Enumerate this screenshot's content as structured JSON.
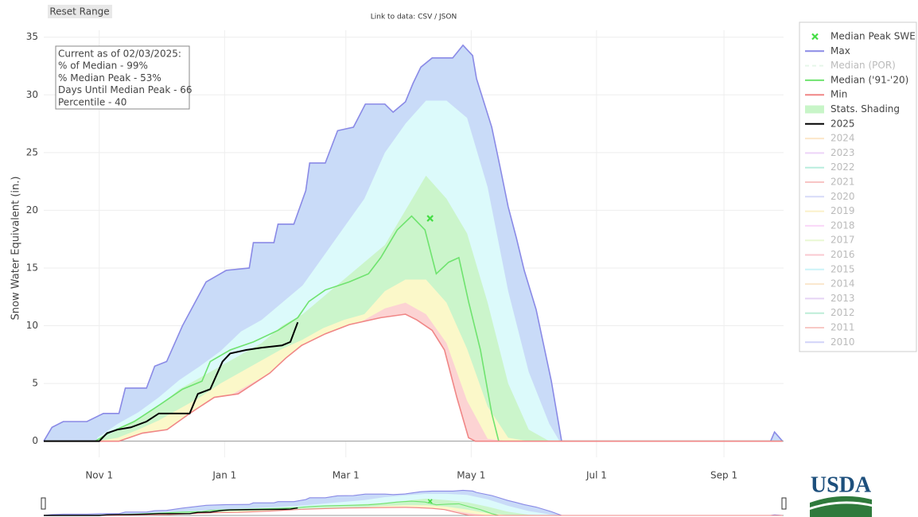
{
  "chart_data": {
    "type": "line",
    "button": "Reset Range",
    "link_text": "Link to data: CSV / JSON",
    "ylabel": "Snow Water Equivalent (in.)",
    "annotation": [
      "Current as of 02/03/2025:",
      "% of Median - 99%",
      "% Median Peak - 53%",
      "Days Until Median Peak - 66",
      "Percentile - 40"
    ],
    "logo": "USDA",
    "xlim": [
      4,
      364
    ],
    "xticks": [
      {
        "value": 31,
        "label": "Nov 1"
      },
      {
        "value": 92,
        "label": "Jan 1"
      },
      {
        "value": 151,
        "label": "Mar 1"
      },
      {
        "value": 212,
        "label": "May 1"
      },
      {
        "value": 273,
        "label": "Jul 1"
      },
      {
        "value": 335,
        "label": "Sep 1"
      }
    ],
    "ylim": [
      -1.4,
      35.6
    ],
    "yticks": [
      0,
      5,
      10,
      15,
      20,
      25,
      30,
      35
    ],
    "grid": true,
    "legend": "right",
    "series": [
      {
        "name": "Median Peak SWE",
        "color": "#44dd44",
        "mode": "marker",
        "x": [
          192
        ],
        "values": [
          19.3
        ]
      },
      {
        "name": "Max",
        "color": "#8a8ae6",
        "fill": "#c9dbf8",
        "x": [
          4,
          8,
          13.5,
          25,
          33,
          40.6,
          43.7,
          54,
          58,
          63.8,
          71.5,
          83,
          92.8,
          104,
          106,
          116,
          118,
          125.7,
          131.5,
          133.4,
          141,
          147,
          154.7,
          160.5,
          170,
          174,
          180,
          183.7,
          187.5,
          193,
          203,
          208,
          212.7,
          214.6,
          222,
          226,
          230,
          234,
          237.8,
          243.6,
          251,
          256,
          357.7,
          359.6,
          363.5
        ],
        "values": [
          0,
          1.2,
          1.7,
          1.7,
          2.4,
          2.4,
          4.6,
          4.6,
          6.5,
          6.9,
          10,
          13.8,
          14.8,
          15,
          17.2,
          17.2,
          18.8,
          18.8,
          21.7,
          24.1,
          24.1,
          26.9,
          27.2,
          29.2,
          29.2,
          28.5,
          29.4,
          31,
          32.4,
          33.2,
          33.2,
          34.3,
          33.4,
          31.4,
          27.2,
          23.8,
          20.3,
          17.6,
          14.8,
          11.4,
          5.2,
          0,
          0,
          0.8,
          0
        ]
      },
      {
        "name": "Median (POR)",
        "color": "#c8eccf",
        "dash": true,
        "hidden": true
      },
      {
        "name": "Median ('91-'20)",
        "color": "#6fe36f",
        "x": [
          4,
          29,
          36.7,
          48,
          60,
          71.5,
          81,
          85,
          94.7,
          106,
          118,
          127.6,
          133,
          141,
          152.7,
          162,
          168,
          176,
          183,
          189.5,
          195,
          201,
          206,
          210.7,
          216.5,
          222,
          225.4,
          363.5
        ],
        "values": [
          0,
          0,
          0.8,
          1.7,
          3.1,
          4.5,
          5.2,
          6.9,
          7.9,
          8.6,
          9.6,
          10.7,
          12.1,
          13.1,
          13.8,
          14.5,
          15.9,
          18.3,
          19.5,
          18.3,
          14.5,
          15.5,
          15.9,
          12.1,
          7.9,
          2.4,
          0,
          0
        ]
      },
      {
        "name": "Min",
        "color": "#f08686",
        "x": [
          4,
          40.6,
          52,
          64,
          75,
          87,
          98.6,
          114,
          121.8,
          129.5,
          141,
          152.7,
          168,
          180,
          185.6,
          193,
          199,
          205,
          210.7,
          214,
          363.5
        ],
        "values": [
          0,
          0,
          0.7,
          1,
          2.4,
          3.8,
          4.1,
          5.9,
          7.2,
          8.3,
          9.3,
          10.1,
          10.7,
          11,
          10.5,
          9.6,
          7.9,
          3.8,
          0.3,
          0,
          0
        ]
      },
      {
        "name": "Stats. Shading",
        "color": "#c8f5c8",
        "mode": "swatch"
      },
      {
        "name": "2025",
        "color": "#000000",
        "x": [
          4,
          31,
          34.8,
          39.8,
          46.4,
          54,
          60,
          75,
          79,
          85,
          91,
          94.7,
          102.5,
          110,
          120,
          124,
          127.6
        ],
        "values": [
          0,
          0,
          0.7,
          1,
          1.2,
          1.7,
          2.4,
          2.4,
          4.1,
          4.5,
          6.9,
          7.6,
          7.9,
          8.1,
          8.3,
          8.6,
          10.3
        ]
      },
      {
        "name": "2024",
        "color": "#f9c98a",
        "hidden": true
      },
      {
        "name": "2023",
        "color": "#d9a0f0",
        "hidden": true
      },
      {
        "name": "2022",
        "color": "#66d8b8",
        "hidden": true
      },
      {
        "name": "2021",
        "color": "#f08080",
        "hidden": true
      },
      {
        "name": "2020",
        "color": "#a8b0f0",
        "hidden": true
      },
      {
        "name": "2019",
        "color": "#f8e08a",
        "hidden": true
      },
      {
        "name": "2018",
        "color": "#f5a8f0",
        "hidden": true
      },
      {
        "name": "2017",
        "color": "#d0f0a0",
        "hidden": true
      },
      {
        "name": "2016",
        "color": "#f58a9a",
        "hidden": true
      },
      {
        "name": "2015",
        "color": "#90e8f0",
        "hidden": true
      },
      {
        "name": "2014",
        "color": "#f5c890",
        "hidden": true
      },
      {
        "name": "2013",
        "color": "#c8a0e8",
        "hidden": true
      },
      {
        "name": "2012",
        "color": "#70d8a8",
        "hidden": true
      },
      {
        "name": "2011",
        "color": "#f08a80",
        "hidden": true
      },
      {
        "name": "2010",
        "color": "#9aa0f0",
        "hidden": true
      }
    ],
    "stats_shading": {
      "x": [
        30,
        40,
        50,
        60,
        70,
        80,
        90,
        100,
        110,
        120,
        130,
        140,
        150,
        160,
        170,
        180,
        190,
        200,
        210,
        220,
        230,
        240,
        250,
        255
      ],
      "bands": [
        {
          "color": "#dcfafb",
          "values": [
            0.3,
            1.5,
            2.5,
            3.8,
            5.3,
            6.5,
            7.8,
            9.5,
            10.5,
            12,
            13.5,
            16,
            18.5,
            21,
            25,
            27.5,
            29.5,
            29.5,
            28,
            22,
            13,
            6,
            1.5,
            0
          ]
        },
        {
          "color": "#cbf5cb",
          "values": [
            0,
            1,
            2,
            3,
            4.5,
            5.5,
            6.5,
            7.5,
            8.5,
            10,
            11,
            12.5,
            14,
            15.5,
            17,
            20,
            23,
            21,
            18,
            12,
            5,
            1,
            0,
            0
          ]
        },
        {
          "color": "#fbf8c9",
          "values": [
            0,
            0.3,
            1,
            1.8,
            2.8,
            3.8,
            5,
            6,
            7,
            8,
            8.8,
            9.8,
            10.5,
            11,
            13,
            14,
            14,
            12,
            8,
            3,
            0.3,
            0,
            0,
            0
          ]
        },
        {
          "color": "#fcd3d3",
          "values": [
            0,
            0,
            0.3,
            0.8,
            1.5,
            2.5,
            3.5,
            4.5,
            5.5,
            6.5,
            7.5,
            8.5,
            9.5,
            10.5,
            11.5,
            12,
            11,
            8.5,
            3.5,
            0.2,
            0,
            0,
            0,
            0
          ]
        }
      ]
    }
  }
}
